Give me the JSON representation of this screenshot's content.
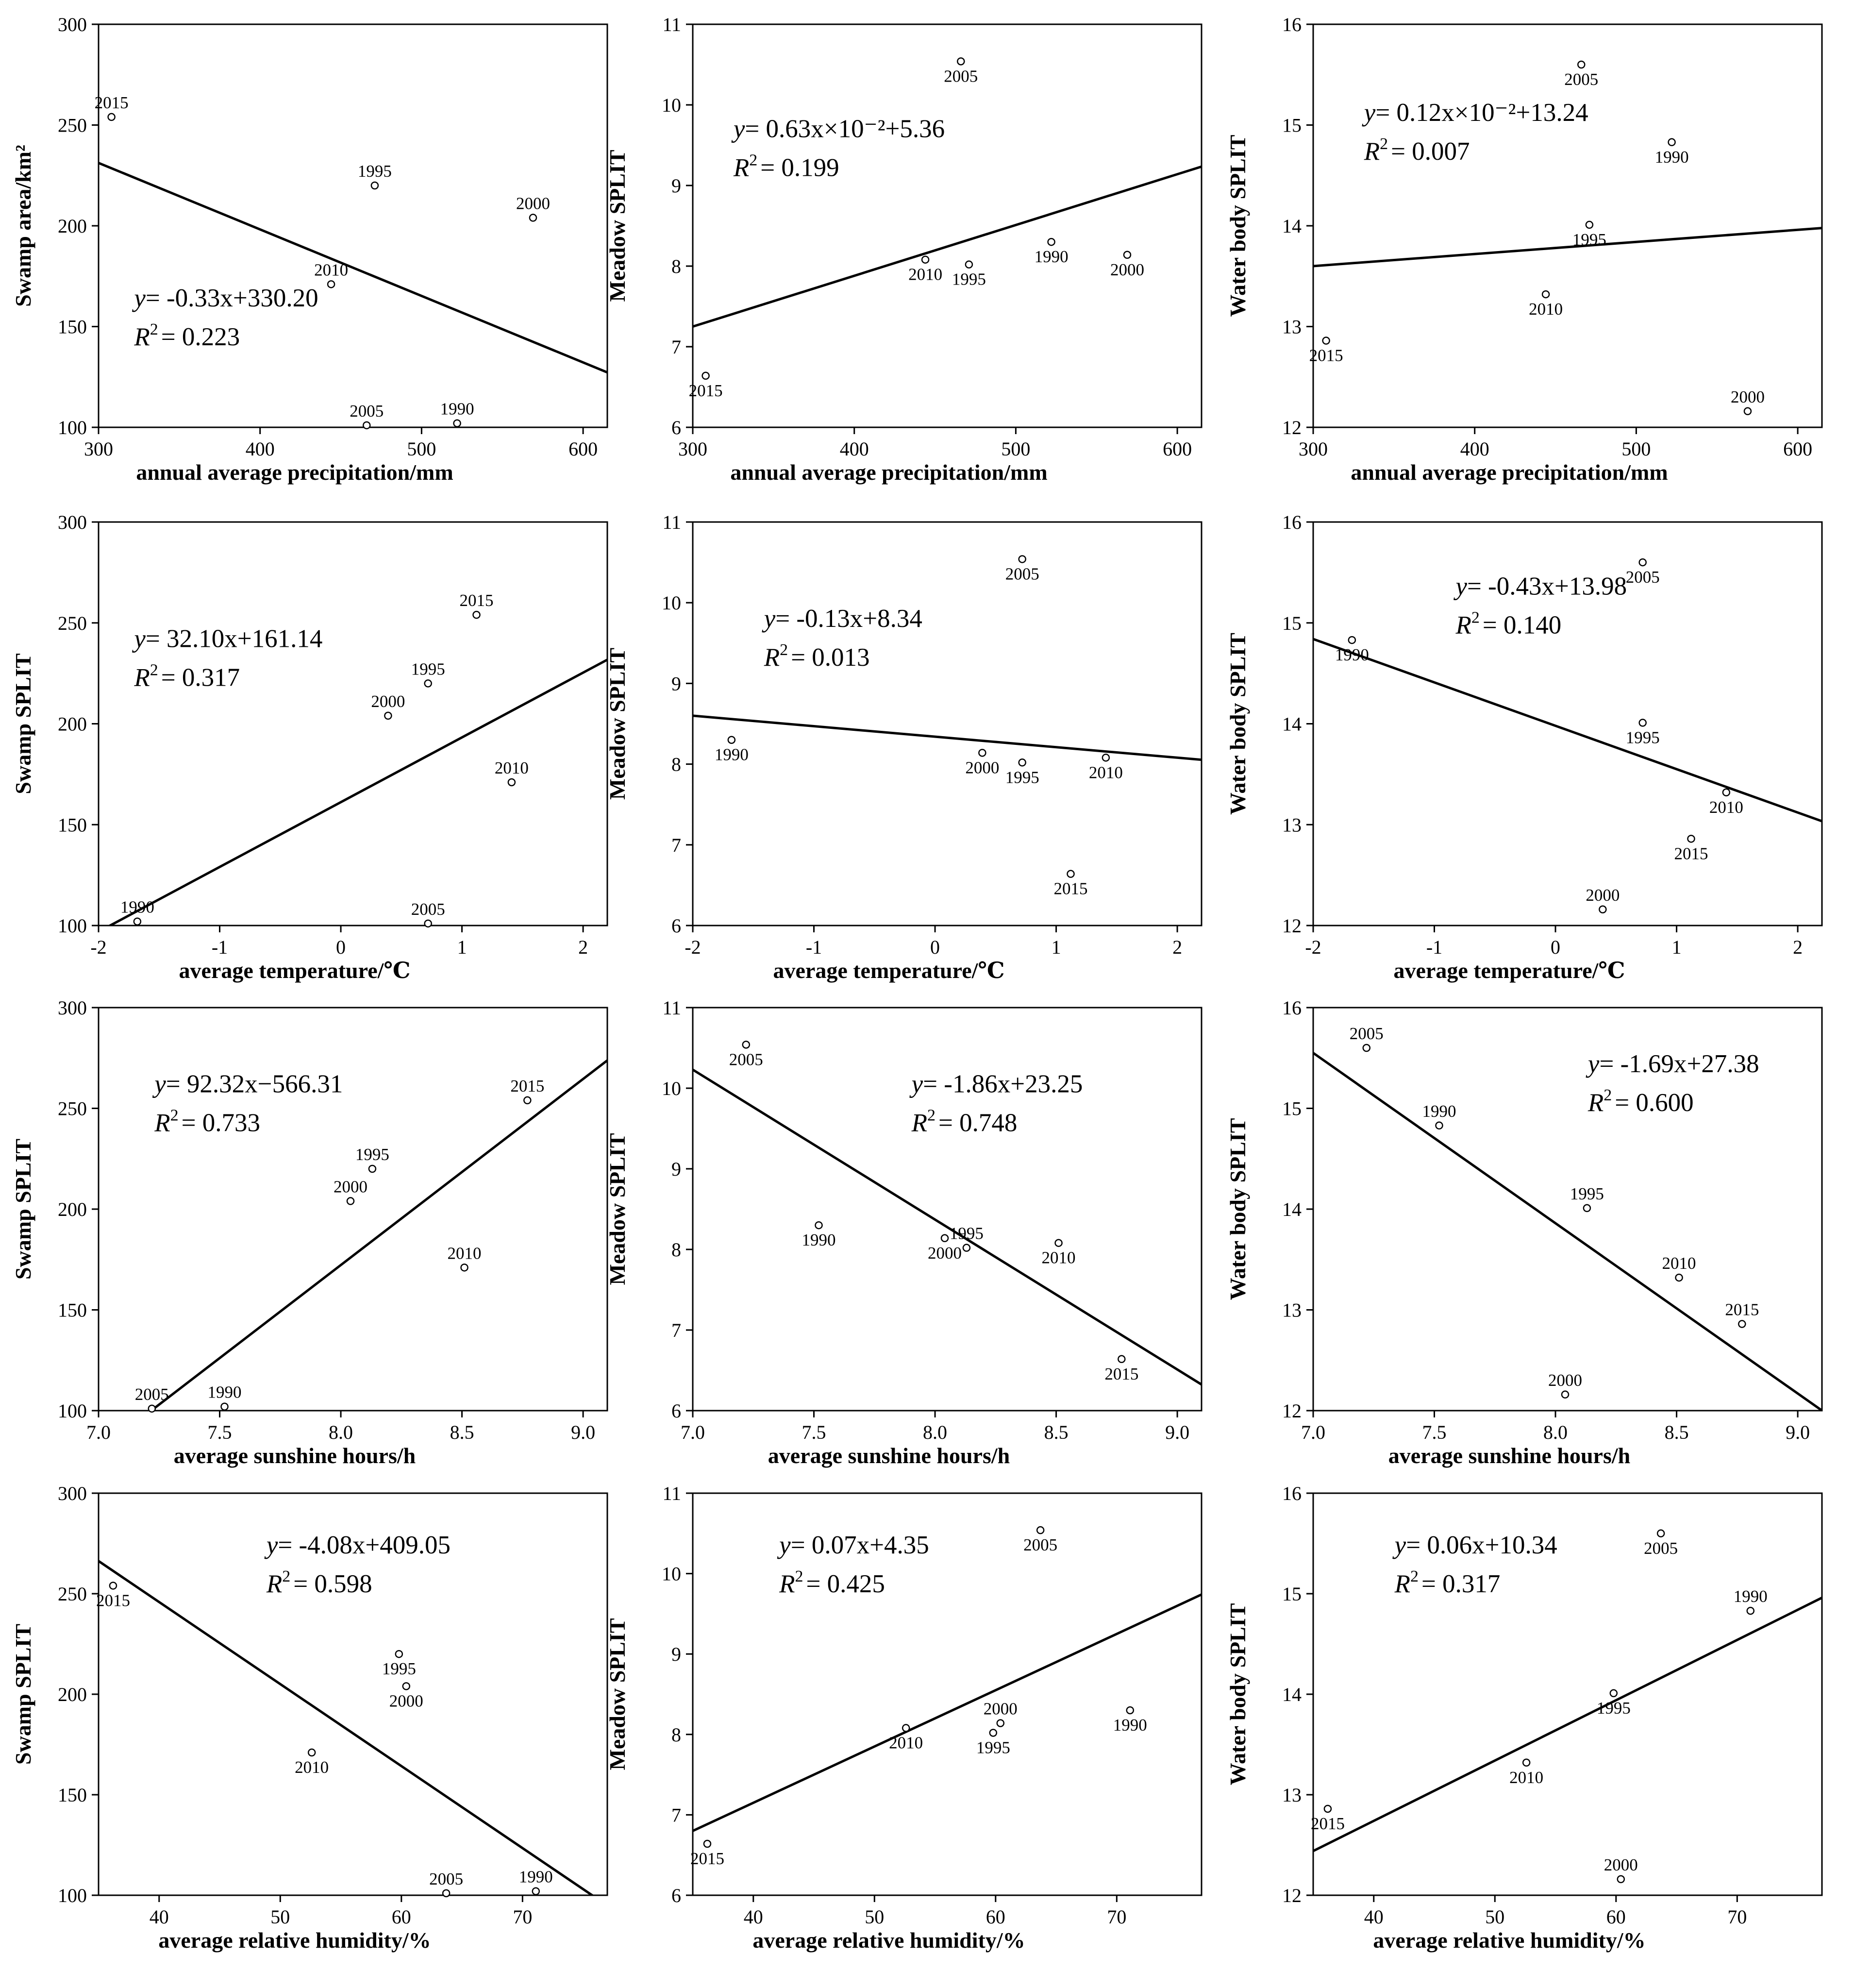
{
  "chart_data": [
    {
      "id": "p11",
      "type": "scatter",
      "xlabel": "annual average precipitation/mm",
      "ylabel": "Swamp area/km²",
      "xlim": [
        300,
        615
      ],
      "ylim": [
        100,
        300
      ],
      "xticks": [
        300,
        400,
        500,
        600
      ],
      "yticks": [
        100,
        150,
        200,
        250,
        300
      ],
      "xtick_labels": [
        "300",
        "400",
        "500",
        "600"
      ],
      "ytick_labels": [
        "100",
        "150",
        "200",
        "250",
        "300"
      ],
      "points": [
        {
          "x": 308,
          "y": 254,
          "label": "2015"
        },
        {
          "x": 471,
          "y": 220,
          "label": "1995"
        },
        {
          "x": 569,
          "y": 204,
          "label": "2000"
        },
        {
          "x": 444,
          "y": 171,
          "label": "2010"
        },
        {
          "x": 466,
          "y": 101,
          "label": "2005"
        },
        {
          "x": 522,
          "y": 102,
          "label": "1990"
        }
      ],
      "fit": {
        "slope": -0.33,
        "intercept": 330.2
      },
      "equation": {
        "lhs": "y",
        "rhs": "= -0.33x+330.20",
        "r2_label": "R",
        "r2_sup": "2",
        "r2_value": "= 0.223"
      }
    },
    {
      "id": "p12",
      "type": "scatter",
      "xlabel": "annual average precipitation/mm",
      "ylabel": "Meadow SPLIT",
      "xlim": [
        300,
        615
      ],
      "ylim": [
        6,
        11
      ],
      "xticks": [
        300,
        400,
        500,
        600
      ],
      "yticks": [
        6,
        7,
        8,
        9,
        10,
        11
      ],
      "xtick_labels": [
        "300",
        "400",
        "500",
        "600"
      ],
      "ytick_labels": [
        "6",
        "7",
        "8",
        "9",
        "10",
        "11"
      ],
      "points": [
        {
          "x": 466,
          "y": 10.54,
          "label": "2005"
        },
        {
          "x": 444,
          "y": 8.08,
          "label": "2010"
        },
        {
          "x": 471,
          "y": 8.02,
          "label": "1995"
        },
        {
          "x": 522,
          "y": 8.3,
          "label": "1990"
        },
        {
          "x": 569,
          "y": 8.14,
          "label": "2000"
        },
        {
          "x": 308,
          "y": 6.64,
          "label": "2015"
        }
      ],
      "fit": {
        "slope": 0.0063,
        "intercept": 5.36
      },
      "equation": {
        "lhs": "y",
        "rhs": "= 0.63x×10⁻²+5.36",
        "r2_label": "R",
        "r2_sup": "2",
        "r2_value": "= 0.199"
      }
    },
    {
      "id": "p13",
      "type": "scatter",
      "xlabel": "annual average precipitation/mm",
      "ylabel": "Water body SPLIT",
      "xlim": [
        300,
        615
      ],
      "ylim": [
        12,
        16
      ],
      "xticks": [
        300,
        400,
        500,
        600
      ],
      "yticks": [
        12,
        13,
        14,
        15,
        16
      ],
      "xtick_labels": [
        "300",
        "400",
        "500",
        "600"
      ],
      "ytick_labels": [
        "12",
        "13",
        "14",
        "15",
        "16"
      ],
      "points": [
        {
          "x": 466,
          "y": 15.6,
          "label": "2005"
        },
        {
          "x": 522,
          "y": 14.83,
          "label": "1990"
        },
        {
          "x": 471,
          "y": 14.01,
          "label": "1995"
        },
        {
          "x": 444,
          "y": 13.32,
          "label": "2010"
        },
        {
          "x": 308,
          "y": 12.86,
          "label": "2015"
        },
        {
          "x": 569,
          "y": 12.16,
          "label": "2000"
        }
      ],
      "fit": {
        "slope": 0.0012,
        "intercept": 13.24
      },
      "equation": {
        "lhs": "y",
        "rhs": "= 0.12x×10⁻²+13.24",
        "r2_label": "R",
        "r2_sup": "2",
        "r2_value": "= 0.007"
      }
    },
    {
      "id": "p21",
      "type": "scatter",
      "xlabel": "average temperature/℃",
      "ylabel": "Swamp SPLIT",
      "xlim": [
        -2,
        2.2
      ],
      "ylim": [
        100,
        300
      ],
      "xticks": [
        -2,
        -1,
        0,
        1,
        2
      ],
      "yticks": [
        100,
        150,
        200,
        250,
        300
      ],
      "xtick_labels": [
        "-2",
        "-1",
        "0",
        "1",
        "2"
      ],
      "ytick_labels": [
        "100",
        "150",
        "200",
        "250",
        "300"
      ],
      "points": [
        {
          "x": 1.12,
          "y": 254,
          "label": "2015"
        },
        {
          "x": 0.72,
          "y": 220,
          "label": "1995"
        },
        {
          "x": 0.39,
          "y": 204,
          "label": "2000"
        },
        {
          "x": 1.41,
          "y": 171,
          "label": "2010"
        },
        {
          "x": -1.68,
          "y": 102,
          "label": "1990"
        },
        {
          "x": 0.72,
          "y": 101,
          "label": "2005"
        }
      ],
      "fit": {
        "slope": 32.1,
        "intercept": 161.14
      },
      "equation": {
        "lhs": "y",
        "rhs": "= 32.10x+161.14",
        "r2_label": "R",
        "r2_sup": "2",
        "r2_value": "= 0.317"
      }
    },
    {
      "id": "p22",
      "type": "scatter",
      "xlabel": "average temperature/℃",
      "ylabel": "Meadow SPLIT",
      "xlim": [
        -2,
        2.2
      ],
      "ylim": [
        6,
        11
      ],
      "xticks": [
        -2,
        -1,
        0,
        1,
        2
      ],
      "yticks": [
        6,
        7,
        8,
        9,
        10,
        11
      ],
      "xtick_labels": [
        "-2",
        "-1",
        "0",
        "1",
        "2"
      ],
      "ytick_labels": [
        "6",
        "7",
        "8",
        "9",
        "10",
        "11"
      ],
      "points": [
        {
          "x": 0.72,
          "y": 10.54,
          "label": "2005"
        },
        {
          "x": -1.68,
          "y": 8.3,
          "label": "1990"
        },
        {
          "x": 0.39,
          "y": 8.14,
          "label": "2000"
        },
        {
          "x": 0.72,
          "y": 8.02,
          "label": "1995"
        },
        {
          "x": 1.41,
          "y": 8.08,
          "label": "2010"
        },
        {
          "x": 1.12,
          "y": 6.64,
          "label": "2015"
        }
      ],
      "fit": {
        "slope": -0.13,
        "intercept": 8.34
      },
      "equation": {
        "lhs": "y",
        "rhs": "= -0.13x+8.34",
        "r2_label": "R",
        "r2_sup": "2",
        "r2_value": "= 0.013"
      }
    },
    {
      "id": "p23",
      "type": "scatter",
      "xlabel": "average temperature/℃",
      "ylabel": "Water body SPLIT",
      "xlim": [
        -2,
        2.2
      ],
      "ylim": [
        12,
        16
      ],
      "xticks": [
        -2,
        -1,
        0,
        1,
        2
      ],
      "yticks": [
        12,
        13,
        14,
        15,
        16
      ],
      "xtick_labels": [
        "-2",
        "-1",
        "0",
        "1",
        "2"
      ],
      "ytick_labels": [
        "12",
        "13",
        "14",
        "15",
        "16"
      ],
      "points": [
        {
          "x": 0.72,
          "y": 15.6,
          "label": "2005"
        },
        {
          "x": -1.68,
          "y": 14.83,
          "label": "1990"
        },
        {
          "x": 0.72,
          "y": 14.01,
          "label": "1995"
        },
        {
          "x": 1.41,
          "y": 13.32,
          "label": "2010"
        },
        {
          "x": 1.12,
          "y": 12.86,
          "label": "2015"
        },
        {
          "x": 0.39,
          "y": 12.16,
          "label": "2000"
        }
      ],
      "fit": {
        "slope": -0.43,
        "intercept": 13.98
      },
      "equation": {
        "lhs": "y",
        "rhs": "= -0.43x+13.98",
        "r2_label": "R",
        "r2_sup": "2",
        "r2_value": "= 0.140"
      }
    },
    {
      "id": "p31",
      "type": "scatter",
      "xlabel": "average sunshine hours/h",
      "ylabel": "Swamp SPLIT",
      "xlim": [
        7.0,
        9.1
      ],
      "ylim": [
        100,
        300
      ],
      "xticks": [
        7.0,
        7.5,
        8.0,
        8.5,
        9.0
      ],
      "yticks": [
        100,
        150,
        200,
        250,
        300
      ],
      "xtick_labels": [
        "7.0",
        "7.5",
        "8.0",
        "8.5",
        "9.0"
      ],
      "ytick_labels": [
        "100",
        "150",
        "200",
        "250",
        "300"
      ],
      "points": [
        {
          "x": 8.77,
          "y": 254,
          "label": "2015"
        },
        {
          "x": 8.13,
          "y": 220,
          "label": "1995"
        },
        {
          "x": 8.04,
          "y": 204,
          "label": "2000"
        },
        {
          "x": 8.51,
          "y": 171,
          "label": "2010"
        },
        {
          "x": 7.22,
          "y": 101,
          "label": "2005"
        },
        {
          "x": 7.52,
          "y": 102,
          "label": "1990"
        }
      ],
      "fit": {
        "slope": 92.32,
        "intercept": -566.31
      },
      "equation": {
        "lhs": "y",
        "rhs": "= 92.32x−566.31",
        "r2_label": "R",
        "r2_sup": "2",
        "r2_value": "= 0.733"
      }
    },
    {
      "id": "p32",
      "type": "scatter",
      "xlabel": "average sunshine hours/h",
      "ylabel": "Meadow SPLIT",
      "xlim": [
        7.0,
        9.1
      ],
      "ylim": [
        6,
        11
      ],
      "xticks": [
        7.0,
        7.5,
        8.0,
        8.5,
        9.0
      ],
      "yticks": [
        6,
        7,
        8,
        9,
        10,
        11
      ],
      "xtick_labels": [
        "7.0",
        "7.5",
        "8.0",
        "8.5",
        "9.0"
      ],
      "ytick_labels": [
        "6",
        "7",
        "8",
        "9",
        "10",
        "11"
      ],
      "points": [
        {
          "x": 7.22,
          "y": 10.54,
          "label": "2005"
        },
        {
          "x": 7.52,
          "y": 8.3,
          "label": "1990"
        },
        {
          "x": 8.04,
          "y": 8.14,
          "label": "2000"
        },
        {
          "x": 8.13,
          "y": 8.02,
          "label": "1995"
        },
        {
          "x": 8.51,
          "y": 8.08,
          "label": "2010"
        },
        {
          "x": 8.77,
          "y": 6.64,
          "label": "2015"
        }
      ],
      "fit": {
        "slope": -1.86,
        "intercept": 23.25
      },
      "equation": {
        "lhs": "y",
        "rhs": "= -1.86x+23.25",
        "r2_label": "R",
        "r2_sup": "2",
        "r2_value": "= 0.748"
      }
    },
    {
      "id": "p33",
      "type": "scatter",
      "xlabel": "average sunshine hours/h",
      "ylabel": "Water body SPLIT",
      "xlim": [
        7.0,
        9.1
      ],
      "ylim": [
        12,
        16
      ],
      "xticks": [
        7.0,
        7.5,
        8.0,
        8.5,
        9.0
      ],
      "yticks": [
        12,
        13,
        14,
        15,
        16
      ],
      "xtick_labels": [
        "7.0",
        "7.5",
        "8.0",
        "8.5",
        "9.0"
      ],
      "ytick_labels": [
        "12",
        "13",
        "14",
        "15",
        "16"
      ],
      "points": [
        {
          "x": 7.22,
          "y": 15.6,
          "label": "2005"
        },
        {
          "x": 7.52,
          "y": 14.83,
          "label": "1990"
        },
        {
          "x": 8.13,
          "y": 14.01,
          "label": "1995"
        },
        {
          "x": 8.51,
          "y": 13.32,
          "label": "2010"
        },
        {
          "x": 8.77,
          "y": 12.86,
          "label": "2015"
        },
        {
          "x": 8.04,
          "y": 12.16,
          "label": "2000"
        }
      ],
      "fit": {
        "slope": -1.69,
        "intercept": 27.38
      },
      "equation": {
        "lhs": "y",
        "rhs": "= -1.69x+27.38",
        "r2_label": "R",
        "r2_sup": "2",
        "r2_value": "= 0.600"
      }
    },
    {
      "id": "p41",
      "type": "scatter",
      "xlabel": "average relative humidity/%",
      "ylabel": "Swamp SPLIT",
      "xlim": [
        35,
        77
      ],
      "ylim": [
        100,
        300
      ],
      "xticks": [
        40,
        50,
        60,
        70
      ],
      "yticks": [
        100,
        150,
        200,
        250,
        300
      ],
      "xtick_labels": [
        "40",
        "50",
        "60",
        "70"
      ],
      "ytick_labels": [
        "100",
        "150",
        "200",
        "250",
        "300"
      ],
      "points": [
        {
          "x": 36.2,
          "y": 254,
          "label": "2015"
        },
        {
          "x": 59.8,
          "y": 220,
          "label": "1995"
        },
        {
          "x": 60.4,
          "y": 204,
          "label": "2000"
        },
        {
          "x": 52.6,
          "y": 171,
          "label": "2010"
        },
        {
          "x": 63.7,
          "y": 101,
          "label": "2005"
        },
        {
          "x": 71.1,
          "y": 102,
          "label": "1990"
        }
      ],
      "fit": {
        "slope": -4.08,
        "intercept": 409.05
      },
      "equation": {
        "lhs": "y",
        "rhs": "= -4.08x+409.05",
        "r2_label": "R",
        "r2_sup": "2",
        "r2_value": "= 0.598"
      }
    },
    {
      "id": "p42",
      "type": "scatter",
      "xlabel": "average relative humidity/%",
      "ylabel": "Meadow SPLIT",
      "xlim": [
        35,
        77
      ],
      "ylim": [
        6,
        11
      ],
      "xticks": [
        40,
        50,
        60,
        70
      ],
      "yticks": [
        6,
        7,
        8,
        9,
        10,
        11
      ],
      "xtick_labels": [
        "40",
        "50",
        "60",
        "70"
      ],
      "ytick_labels": [
        "6",
        "7",
        "8",
        "9",
        "10",
        "11"
      ],
      "points": [
        {
          "x": 63.7,
          "y": 10.54,
          "label": "2005"
        },
        {
          "x": 52.6,
          "y": 8.08,
          "label": "2010"
        },
        {
          "x": 60.4,
          "y": 8.14,
          "label": "2000"
        },
        {
          "x": 59.8,
          "y": 8.02,
          "label": "1995"
        },
        {
          "x": 71.1,
          "y": 8.3,
          "label": "1990"
        },
        {
          "x": 36.2,
          "y": 6.64,
          "label": "2015"
        }
      ],
      "fit": {
        "slope": 0.07,
        "intercept": 4.35
      },
      "equation": {
        "lhs": "y",
        "rhs": "= 0.07x+4.35",
        "r2_label": "R",
        "r2_sup": "2",
        "r2_value": "= 0.425"
      }
    },
    {
      "id": "p43",
      "type": "scatter",
      "xlabel": "average relative humidity/%",
      "ylabel": "Water body SPLIT",
      "xlim": [
        35,
        77
      ],
      "ylim": [
        12,
        16
      ],
      "xticks": [
        40,
        50,
        60,
        70
      ],
      "yticks": [
        12,
        13,
        14,
        15,
        16
      ],
      "xtick_labels": [
        "40",
        "50",
        "60",
        "70"
      ],
      "ytick_labels": [
        "12",
        "13",
        "14",
        "15",
        "16"
      ],
      "points": [
        {
          "x": 63.7,
          "y": 15.6,
          "label": "2005"
        },
        {
          "x": 71.1,
          "y": 14.83,
          "label": "1990"
        },
        {
          "x": 59.8,
          "y": 14.01,
          "label": "1995"
        },
        {
          "x": 52.6,
          "y": 13.32,
          "label": "2010"
        },
        {
          "x": 36.2,
          "y": 12.86,
          "label": "2015"
        },
        {
          "x": 60.4,
          "y": 12.16,
          "label": "2000"
        }
      ],
      "fit": {
        "slope": 0.06,
        "intercept": 10.34
      },
      "equation": {
        "lhs": "y",
        "rhs": "= 0.06x+10.34",
        "r2_label": "R",
        "r2_sup": "2",
        "r2_value": "= 0.317"
      }
    }
  ]
}
